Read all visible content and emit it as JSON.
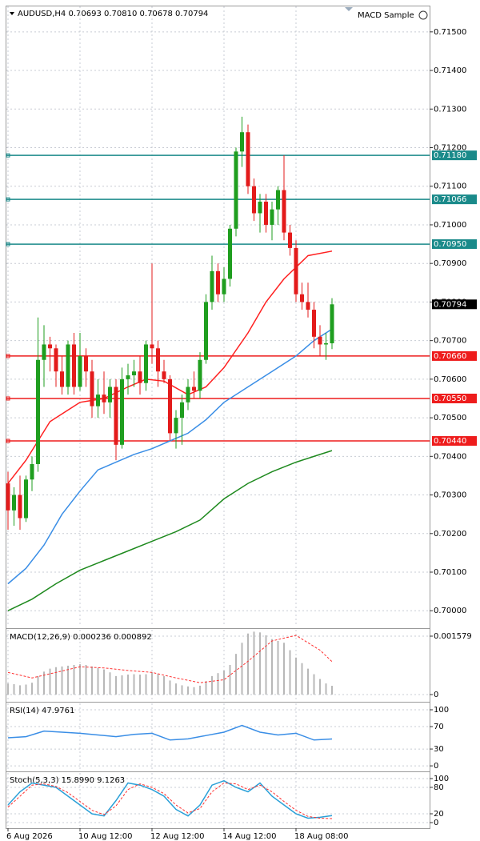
{
  "chart_data": [
    {
      "type": "candlestick",
      "title": "AUDUSD,H4  0.70693 0.70810 0.70678 0.70794",
      "expert": "MACD Sample",
      "up_color": "#1f9e1f",
      "down_color": "#e31b1b",
      "ylim": [
        0.69959,
        0.71566
      ],
      "yticks": [
        {
          "value": 0.7,
          "label": "0.70000"
        },
        {
          "value": 0.701,
          "label": "0.70100"
        },
        {
          "value": 0.702,
          "label": "0.70200"
        },
        {
          "value": 0.703,
          "label": "0.70300"
        },
        {
          "value": 0.704,
          "label": "0.70400"
        },
        {
          "value": 0.705,
          "label": "0.70500"
        },
        {
          "value": 0.706,
          "label": "0.70600"
        },
        {
          "value": 0.707,
          "label": "0.70700"
        },
        {
          "value": 0.708,
          "label": "0.70800"
        },
        {
          "value": 0.709,
          "label": "0.70900"
        },
        {
          "value": 0.71,
          "label": "0.71000"
        },
        {
          "value": 0.711,
          "label": "0.71100"
        },
        {
          "value": 0.712,
          "label": "0.71200"
        },
        {
          "value": 0.713,
          "label": "0.71300"
        },
        {
          "value": 0.714,
          "label": "0.71400"
        },
        {
          "value": 0.715,
          "label": "0.71500"
        }
      ],
      "xticks": [
        {
          "value": 0,
          "label": "6 Aug 2026"
        },
        {
          "value": 12,
          "label": "10 Aug 12:00"
        },
        {
          "value": 24,
          "label": "12 Aug 12:00"
        },
        {
          "value": 36,
          "label": "14 Aug 12:00"
        },
        {
          "value": 48,
          "label": "18 Aug 08:00"
        }
      ],
      "ohlc": [
        [
          0.7033,
          0.7036,
          0.7021,
          0.7026
        ],
        [
          0.7026,
          0.7032,
          0.7022,
          0.703
        ],
        [
          0.703,
          0.7035,
          0.7021,
          0.7024
        ],
        [
          0.7024,
          0.7035,
          0.7023,
          0.7034
        ],
        [
          0.7034,
          0.704,
          0.7031,
          0.7038
        ],
        [
          0.7038,
          0.7076,
          0.7036,
          0.7065
        ],
        [
          0.7065,
          0.7074,
          0.7058,
          0.7069
        ],
        [
          0.7069,
          0.7071,
          0.7062,
          0.7068
        ],
        [
          0.7068,
          0.7069,
          0.7058,
          0.7062
        ],
        [
          0.7062,
          0.7066,
          0.7056,
          0.7058
        ],
        [
          0.7058,
          0.707,
          0.7056,
          0.7069
        ],
        [
          0.7069,
          0.7072,
          0.7056,
          0.7058
        ],
        [
          0.7058,
          0.7072,
          0.7057,
          0.7066
        ],
        [
          0.7066,
          0.7068,
          0.7058,
          0.7062
        ],
        [
          0.7062,
          0.7065,
          0.705,
          0.7053
        ],
        [
          0.7053,
          0.706,
          0.705,
          0.7056
        ],
        [
          0.7056,
          0.7062,
          0.7051,
          0.7054
        ],
        [
          0.7054,
          0.706,
          0.705,
          0.7058
        ],
        [
          0.7058,
          0.706,
          0.7039,
          0.7043
        ],
        [
          0.7043,
          0.7063,
          0.7042,
          0.706
        ],
        [
          0.706,
          0.7064,
          0.7056,
          0.7061
        ],
        [
          0.7061,
          0.7065,
          0.7058,
          0.7062
        ],
        [
          0.7062,
          0.7066,
          0.7056,
          0.7059
        ],
        [
          0.7059,
          0.707,
          0.7057,
          0.7069
        ],
        [
          0.7069,
          0.709,
          0.7064,
          0.7068
        ],
        [
          0.7068,
          0.707,
          0.7058,
          0.7062
        ],
        [
          0.7062,
          0.7065,
          0.7059,
          0.706
        ],
        [
          0.706,
          0.7061,
          0.7044,
          0.7046
        ],
        [
          0.7046,
          0.7052,
          0.7042,
          0.705
        ],
        [
          0.705,
          0.7056,
          0.7043,
          0.7054
        ],
        [
          0.7054,
          0.706,
          0.7052,
          0.7058
        ],
        [
          0.7058,
          0.7062,
          0.7055,
          0.7057
        ],
        [
          0.7057,
          0.7067,
          0.7055,
          0.7065
        ],
        [
          0.7065,
          0.7082,
          0.7064,
          0.708
        ],
        [
          0.708,
          0.7092,
          0.7078,
          0.7088
        ],
        [
          0.7088,
          0.709,
          0.708,
          0.7082
        ],
        [
          0.7082,
          0.7089,
          0.708,
          0.7086
        ],
        [
          0.7086,
          0.71,
          0.7084,
          0.7099
        ],
        [
          0.7099,
          0.712,
          0.7097,
          0.7119
        ],
        [
          0.7119,
          0.7128,
          0.7115,
          0.7124
        ],
        [
          0.7124,
          0.7126,
          0.7108,
          0.711
        ],
        [
          0.711,
          0.7112,
          0.7101,
          0.7103
        ],
        [
          0.7103,
          0.7108,
          0.7098,
          0.7106
        ],
        [
          0.7106,
          0.7108,
          0.7098,
          0.71
        ],
        [
          0.71,
          0.7106,
          0.7096,
          0.7104
        ],
        [
          0.7104,
          0.711,
          0.71,
          0.7109
        ],
        [
          0.7109,
          0.7118,
          0.7096,
          0.7098
        ],
        [
          0.7098,
          0.71,
          0.7092,
          0.7094
        ],
        [
          0.7094,
          0.7096,
          0.708,
          0.7082
        ],
        [
          0.7082,
          0.7085,
          0.7078,
          0.708
        ],
        [
          0.708,
          0.7085,
          0.7076,
          0.7078
        ],
        [
          0.7078,
          0.708,
          0.7068,
          0.7071
        ],
        [
          0.7071,
          0.7074,
          0.7066,
          0.7069
        ],
        [
          0.7069,
          0.7072,
          0.7065,
          0.70693
        ],
        [
          0.70693,
          0.7081,
          0.70678,
          0.70794
        ]
      ],
      "series": [
        {
          "color": "#ff2020",
          "x": [
            0,
            3,
            7,
            12,
            16,
            20,
            23,
            26,
            30,
            33,
            36,
            40,
            43,
            46,
            50,
            54
          ],
          "values": [
            0.7033,
            0.7039,
            0.7049,
            0.7054,
            0.7055,
            0.7058,
            0.706,
            0.70595,
            0.7056,
            0.7058,
            0.7063,
            0.7072,
            0.708,
            0.7086,
            0.7092,
            0.70932
          ]
        },
        {
          "color": "#3a8ee6",
          "x": [
            0,
            3,
            6,
            9,
            12,
            15,
            18,
            21,
            24,
            27,
            30,
            33,
            36,
            40,
            44,
            48,
            51,
            54
          ],
          "values": [
            0.7007,
            0.7011,
            0.7017,
            0.7025,
            0.7031,
            0.70365,
            0.70385,
            0.70405,
            0.7042,
            0.7044,
            0.7046,
            0.70495,
            0.7054,
            0.7058,
            0.7062,
            0.7066,
            0.707,
            0.7073
          ]
        },
        {
          "color": "#1f8a1f",
          "x": [
            0,
            4,
            8,
            12,
            16,
            20,
            24,
            28,
            32,
            36,
            40,
            44,
            48,
            52,
            54
          ],
          "values": [
            0.7,
            0.7003,
            0.7007,
            0.70105,
            0.7013,
            0.70155,
            0.7018,
            0.70205,
            0.70235,
            0.7029,
            0.7033,
            0.7036,
            0.70385,
            0.70405,
            0.70415
          ]
        }
      ],
      "hlines": [
        {
          "value": 0.7118,
          "label": "0.71180",
          "color": "#1a8a8a"
        },
        {
          "value": 0.71066,
          "label": "0.71066",
          "color": "#1a8a8a"
        },
        {
          "value": 0.7095,
          "label": "0.70950",
          "color": "#1a8a8a"
        },
        {
          "value": 0.7066,
          "label": "0.70660",
          "color": "#ee1c1c"
        },
        {
          "value": 0.7055,
          "label": "0.70550",
          "color": "#ee1c1c"
        },
        {
          "value": 0.7044,
          "label": "0.70440",
          "color": "#ee1c1c"
        }
      ],
      "last_price": 0.70794
    },
    {
      "type": "macd",
      "title": "MACD(12,26,9) 0.000236 0.000892",
      "ylim": [
        -0.000195,
        0.001752
      ],
      "yticks": [
        0,
        0.001579
      ],
      "series": [
        {
          "type": "bar",
          "color": "#b8b8b8",
          "values": [
            0.0003,
            0.00028,
            0.00025,
            0.00027,
            0.00032,
            0.0005,
            0.00062,
            0.0007,
            0.00074,
            0.00076,
            0.00078,
            0.0008,
            0.00082,
            0.0008,
            0.00076,
            0.00072,
            0.00068,
            0.0006,
            0.0005,
            0.00052,
            0.00054,
            0.00055,
            0.00054,
            0.00055,
            0.0006,
            0.00056,
            0.0005,
            0.00038,
            0.0003,
            0.00025,
            0.00022,
            0.0002,
            0.00024,
            0.00036,
            0.0005,
            0.00058,
            0.00065,
            0.0008,
            0.0011,
            0.0014,
            0.00165,
            0.0017,
            0.00168,
            0.0016,
            0.0015,
            0.00145,
            0.0014,
            0.0012,
            0.001,
            0.00085,
            0.0007,
            0.00055,
            0.00042,
            0.0003,
            0.000236
          ]
        },
        {
          "type": "line",
          "color": "#ff3030",
          "dash": true,
          "x": [
            0,
            4,
            8,
            12,
            16,
            20,
            24,
            28,
            32,
            36,
            40,
            44,
            48,
            52,
            54
          ],
          "values": [
            0.0006,
            0.00045,
            0.0006,
            0.00075,
            0.00072,
            0.00065,
            0.0006,
            0.00045,
            0.00032,
            0.0004,
            0.0009,
            0.00145,
            0.0016,
            0.0012,
            0.000892
          ]
        }
      ]
    },
    {
      "type": "rsi",
      "title": "RSI(14) 47.9761",
      "ylim": [
        -7,
        111.4
      ],
      "yticks": [
        0,
        30,
        70,
        100
      ],
      "series": [
        {
          "type": "line",
          "color": "#3a8ee6",
          "x": [
            0,
            3,
            6,
            9,
            12,
            15,
            18,
            21,
            24,
            27,
            30,
            33,
            36,
            39,
            42,
            45,
            48,
            51,
            54
          ],
          "values": [
            50,
            52,
            62,
            60,
            58,
            55,
            52,
            56,
            58,
            46,
            48,
            54,
            60,
            72,
            60,
            55,
            58,
            46,
            47.9761
          ]
        }
      ]
    },
    {
      "type": "stochastic",
      "title": "Stoch(5,3,3) 15.8990 9.1263",
      "ylim": [
        -7.3,
        112.7
      ],
      "yticks": [
        0,
        20,
        80,
        100
      ],
      "series": [
        {
          "type": "line",
          "color": "#2aa0d8",
          "x": [
            0,
            2,
            4,
            6,
            8,
            10,
            12,
            14,
            16,
            18,
            20,
            22,
            24,
            26,
            28,
            30,
            32,
            34,
            36,
            38,
            40,
            42,
            44,
            46,
            48,
            50,
            52,
            54
          ],
          "values": [
            40,
            70,
            90,
            85,
            80,
            60,
            40,
            20,
            15,
            50,
            90,
            85,
            75,
            60,
            30,
            15,
            40,
            85,
            95,
            80,
            70,
            90,
            60,
            40,
            20,
            10,
            12,
            15.899
          ]
        },
        {
          "type": "line",
          "color": "#ff3030",
          "dash": true,
          "x": [
            0,
            2,
            4,
            6,
            8,
            10,
            12,
            14,
            16,
            18,
            20,
            22,
            24,
            26,
            28,
            30,
            32,
            34,
            36,
            38,
            40,
            42,
            44,
            46,
            48,
            50,
            52,
            54
          ],
          "values": [
            35,
            60,
            85,
            88,
            82,
            68,
            48,
            28,
            18,
            38,
            75,
            88,
            80,
            66,
            40,
            22,
            32,
            70,
            90,
            88,
            75,
            85,
            70,
            48,
            28,
            14,
            10,
            9.1263
          ]
        }
      ]
    }
  ]
}
